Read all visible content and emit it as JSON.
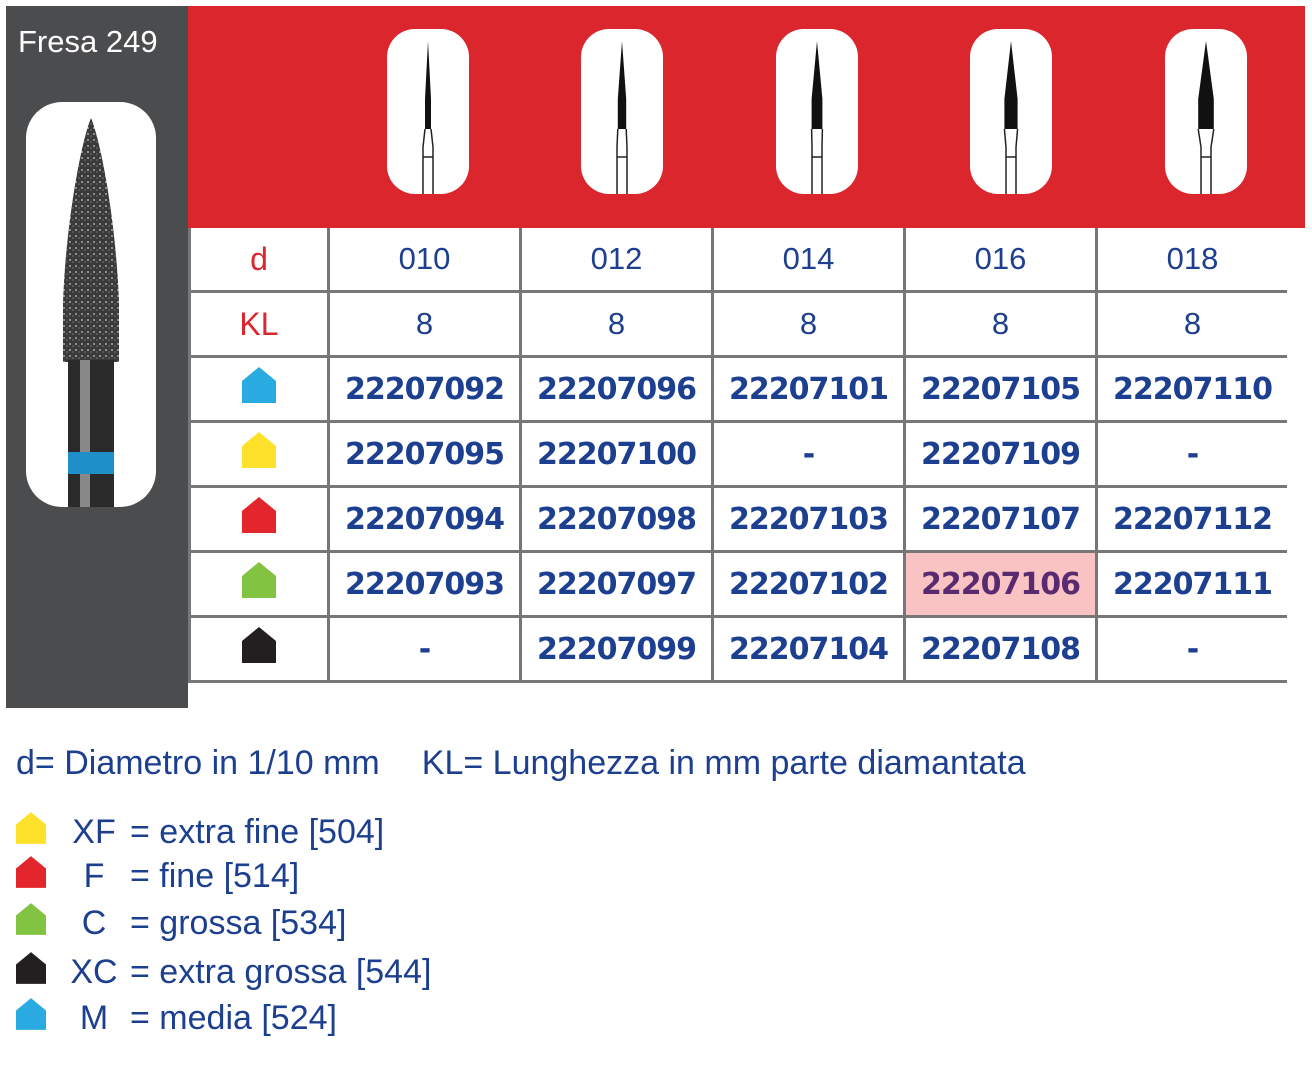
{
  "title": "Fresa 249",
  "colors": {
    "header": "#da262c",
    "panel": "#4b4c4e",
    "text": "#1d3f8f",
    "highlight": "#f9c3c3"
  },
  "table": {
    "rows": [
      {
        "label": "d",
        "values": [
          "010",
          "012",
          "014",
          "016",
          "018"
        ]
      },
      {
        "label": "KL",
        "values": [
          "8",
          "8",
          "8",
          "8",
          "8"
        ]
      },
      {
        "icon": "blue-grit-icon",
        "color": "#29abe2",
        "values": [
          "22207092",
          "22207096",
          "22207101",
          "22207105",
          "22207110"
        ]
      },
      {
        "icon": "yellow-grit-icon",
        "color": "#fde12a",
        "values": [
          "22207095",
          "22207100",
          "-",
          "22207109",
          "-"
        ]
      },
      {
        "icon": "red-grit-icon",
        "color": "#e2262b",
        "values": [
          "22207094",
          "22207098",
          "22207103",
          "22207107",
          "22207112"
        ]
      },
      {
        "icon": "green-grit-icon",
        "color": "#82c341",
        "values": [
          "22207093",
          "22207097",
          "22207102",
          "22207106",
          "22207111"
        ],
        "highlighted": "22207106"
      },
      {
        "icon": "black-grit-icon",
        "color": "#231f20",
        "values": [
          "-",
          "22207099",
          "22207104",
          "22207108",
          "-"
        ]
      }
    ]
  },
  "legend": {
    "line1": "d= Diametro in 1/10 mm",
    "line2": "KL= Lunghezza in mm parte diamantata",
    "items": [
      {
        "color": "#fde12a",
        "code": "XF",
        "text": "= extra fine [504]"
      },
      {
        "color": "#e2262b",
        "code": "F",
        "text": "= fine [514]"
      },
      {
        "color": "#82c341",
        "code": "C",
        "text": "= grossa [534]"
      },
      {
        "color": "#231f20",
        "code": "XC",
        "text": "= extra grossa [544]"
      },
      {
        "color": "#29abe2",
        "code": "M",
        "text": "= media [524]"
      }
    ]
  }
}
